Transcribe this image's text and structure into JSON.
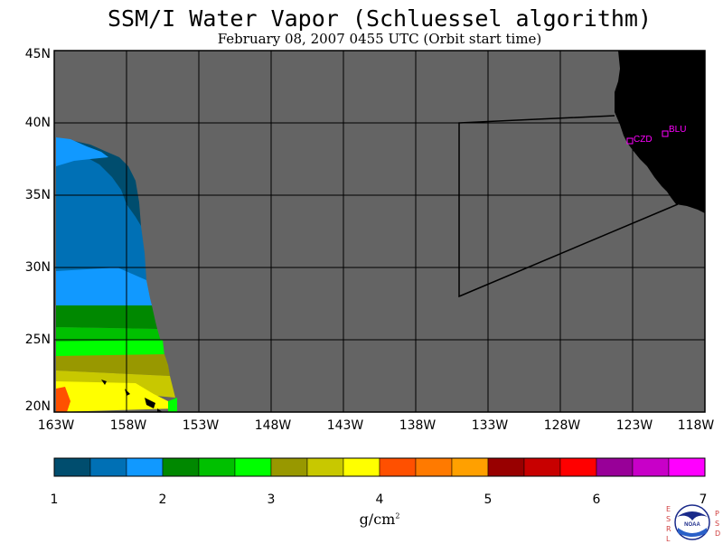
{
  "title": "SSM/I Water Vapor (Schluessel algorithm)",
  "subtitle": "February 08, 2007  0455 UTC  (Orbit start time)",
  "axes": {
    "lat_labels": [
      "45N",
      "40N",
      "35N",
      "30N",
      "25N",
      "20N"
    ],
    "lon_labels": [
      "163W",
      "158W",
      "153W",
      "148W",
      "143W",
      "138W",
      "133W",
      "128W",
      "123W",
      "118W"
    ],
    "lat_range": [
      20,
      45
    ],
    "lon_range": [
      -163,
      -118
    ]
  },
  "stations": [
    {
      "label": "CZD",
      "lat": 38.6,
      "lon": -123.2
    },
    {
      "label": "BLU",
      "lat": 39.3,
      "lon": -120.7
    }
  ],
  "colorbar": {
    "colors": [
      "#004d6e",
      "#0070b5",
      "#1199ff",
      "#008800",
      "#00c000",
      "#00ff00",
      "#989800",
      "#c8c800",
      "#ffff00",
      "#ff5000",
      "#ff7a00",
      "#ffa000",
      "#980000",
      "#c80000",
      "#ff0000",
      "#980098",
      "#c800c8",
      "#ff00ff"
    ],
    "ticks": [
      "1",
      "2",
      "3",
      "4",
      "5",
      "6",
      "7"
    ],
    "units": "g/cm",
    "units_exp": "2"
  },
  "colors": {
    "background_gray": "#646464",
    "land": "#000000",
    "station": "#ff00ff"
  },
  "logo": {
    "left_text": "ESRL",
    "right_text": "PSD",
    "name": "NOAA"
  }
}
